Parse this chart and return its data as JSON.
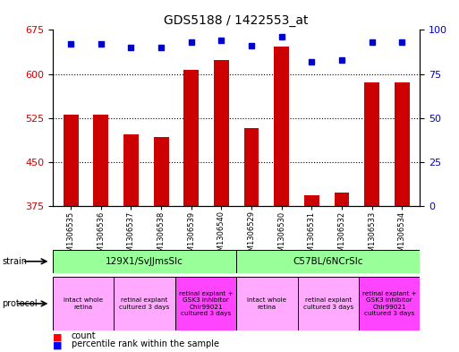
{
  "title": "GDS5188 / 1422553_at",
  "samples": [
    "GSM1306535",
    "GSM1306536",
    "GSM1306537",
    "GSM1306538",
    "GSM1306539",
    "GSM1306540",
    "GSM1306529",
    "GSM1306530",
    "GSM1306531",
    "GSM1306532",
    "GSM1306533",
    "GSM1306534"
  ],
  "counts": [
    530,
    530,
    497,
    493,
    607,
    623,
    507,
    647,
    393,
    397,
    585,
    585
  ],
  "percentiles": [
    92,
    92,
    90,
    90,
    93,
    94,
    91,
    96,
    82,
    83,
    93,
    93
  ],
  "ylim_left": [
    375,
    675
  ],
  "ylim_right": [
    0,
    100
  ],
  "yticks_left": [
    375,
    450,
    525,
    600,
    675
  ],
  "yticks_right": [
    0,
    25,
    50,
    75,
    100
  ],
  "bar_color": "#cc0000",
  "dot_color": "#0000cc",
  "bar_width": 0.5,
  "strain_labels": [
    "129X1/SvJJmsSlc",
    "C57BL/6NCrSlc"
  ],
  "strain_col_ranges": [
    [
      0,
      5
    ],
    [
      6,
      11
    ]
  ],
  "strain_color": "#99ff99",
  "protocol_groups": [
    {
      "label": "intact whole\nretina",
      "col_range": [
        0,
        1
      ],
      "color": "#ffaaff"
    },
    {
      "label": "retinal explant\ncultured 3 days",
      "col_range": [
        2,
        3
      ],
      "color": "#ffaaff"
    },
    {
      "label": "retinal explant +\nGSK3 inhibitor\nChir99021\ncultured 3 days",
      "col_range": [
        4,
        5
      ],
      "color": "#ff44ff"
    },
    {
      "label": "intact whole\nretina",
      "col_range": [
        6,
        7
      ],
      "color": "#ffaaff"
    },
    {
      "label": "retinal explant\ncultured 3 days",
      "col_range": [
        8,
        9
      ],
      "color": "#ffaaff"
    },
    {
      "label": "retinal explant +\nGSK3 inhibitor\nChir99021\ncultured 3 days",
      "col_range": [
        10,
        11
      ],
      "color": "#ff44ff"
    }
  ],
  "bg_color": "#e8e8e8",
  "left_label_color": "#444444",
  "grid_color": "#000000",
  "tick_label_color_left": "#cc0000",
  "tick_label_color_right": "#0000cc"
}
